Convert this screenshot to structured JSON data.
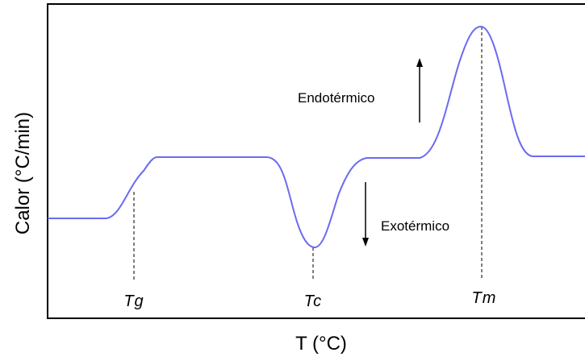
{
  "diagram": {
    "ylabel": "Calor (°C/min)",
    "xlabel": "T (°C)",
    "markers": {
      "tg": "Tg",
      "tc": "Tc",
      "tm": "Tm"
    },
    "annotations": {
      "endo": "Endotérmico",
      "exo": "Exotérmico"
    },
    "colors": {
      "curve": "#6b6bf0",
      "axes": "#000000",
      "guide": "#555555"
    }
  }
}
